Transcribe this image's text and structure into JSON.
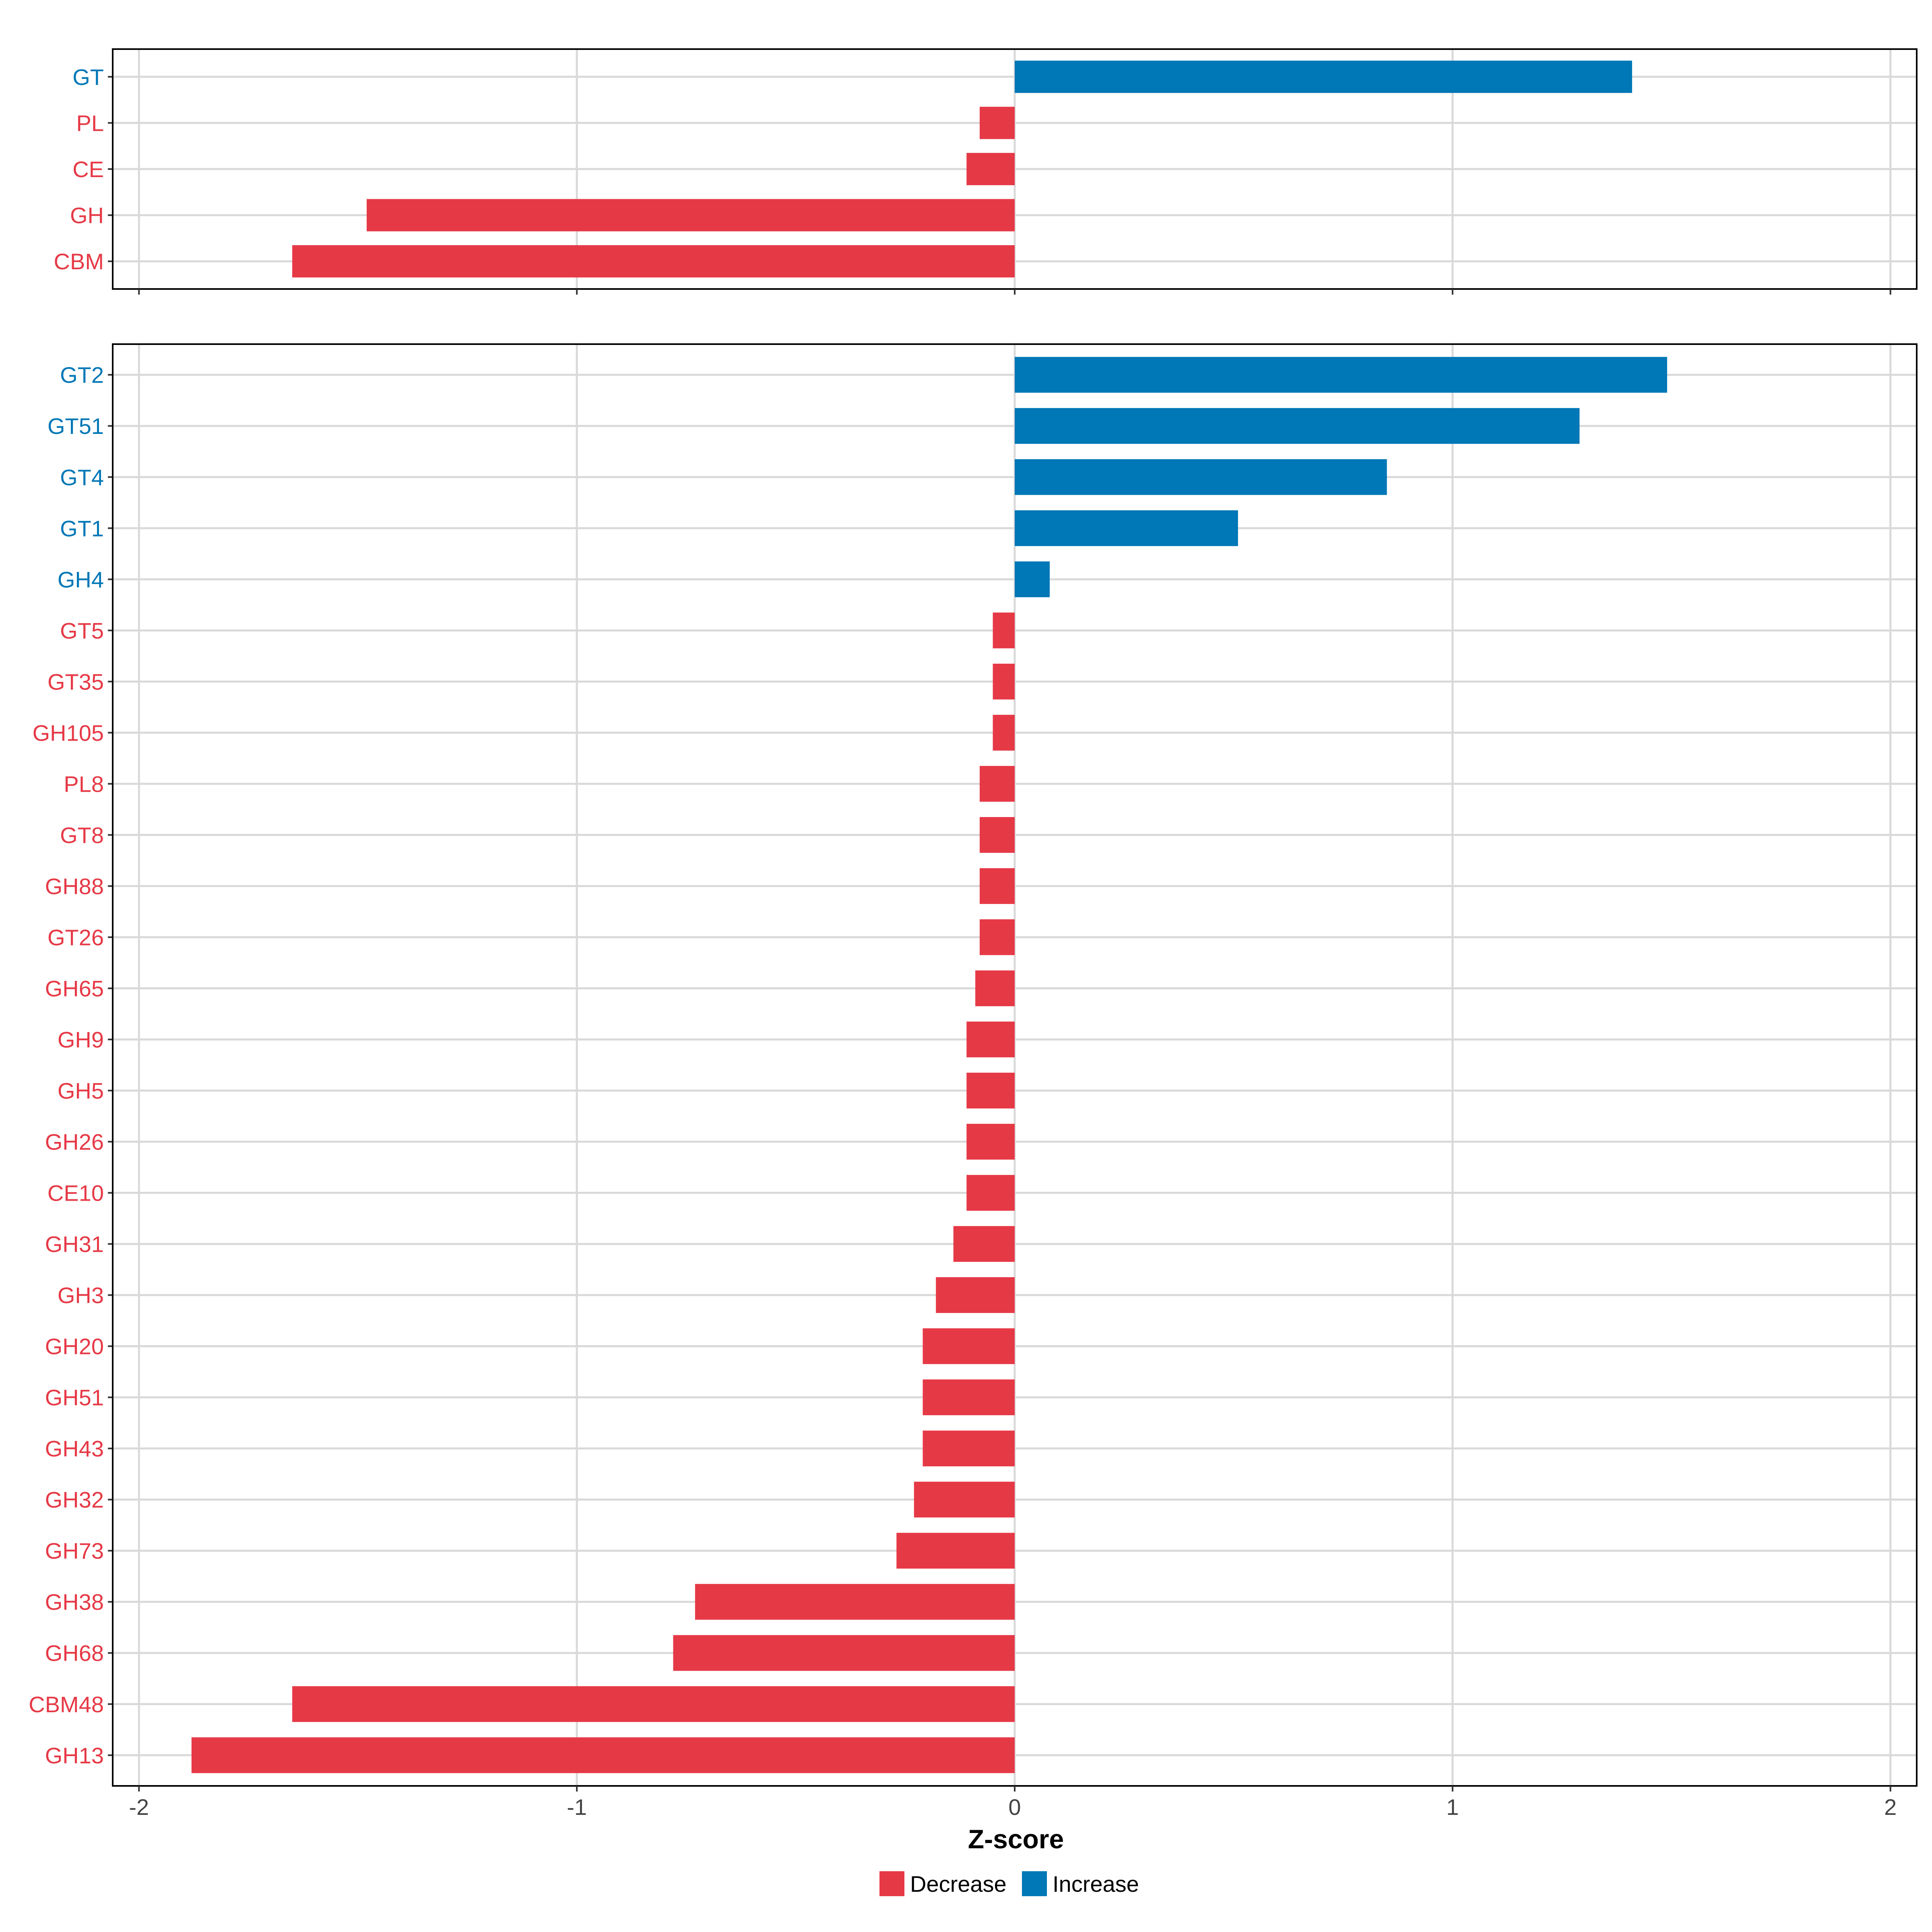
{
  "colors": {
    "decrease": "#E63946",
    "increase": "#0077B6",
    "grid": "#D9D9D9",
    "frame": "#000000",
    "text": "#222222"
  },
  "chart_data": [
    {
      "type": "bar",
      "orientation": "horizontal",
      "panel": "top",
      "categories": [
        "GT",
        "PL",
        "CE",
        "GH",
        "CBM"
      ],
      "values": [
        1.41,
        -0.08,
        -0.11,
        -1.48,
        -1.65
      ],
      "direction": [
        "Increase",
        "Decrease",
        "Decrease",
        "Decrease",
        "Decrease"
      ],
      "xlim": [
        -2.06,
        2.06
      ],
      "x_ticks": [
        -2,
        -1,
        0,
        1,
        2
      ],
      "grid": true
    },
    {
      "type": "bar",
      "orientation": "horizontal",
      "panel": "bottom",
      "categories": [
        "GT2",
        "GT51",
        "GT4",
        "GT1",
        "GH4",
        "GT5",
        "GT35",
        "GH105",
        "PL8",
        "GT8",
        "GH88",
        "GT26",
        "GH65",
        "GH9",
        "GH5",
        "GH26",
        "CE10",
        "GH31",
        "GH3",
        "GH20",
        "GH51",
        "GH43",
        "GH32",
        "GH73",
        "GH38",
        "GH68",
        "CBM48",
        "GH13"
      ],
      "values": [
        1.49,
        1.29,
        0.85,
        0.51,
        0.08,
        -0.05,
        -0.05,
        -0.05,
        -0.08,
        -0.08,
        -0.08,
        -0.08,
        -0.09,
        -0.11,
        -0.11,
        -0.11,
        -0.11,
        -0.14,
        -0.18,
        -0.21,
        -0.21,
        -0.21,
        -0.23,
        -0.27,
        -0.73,
        -0.78,
        -1.65,
        -1.88
      ],
      "direction": [
        "Increase",
        "Increase",
        "Increase",
        "Increase",
        "Increase",
        "Decrease",
        "Decrease",
        "Decrease",
        "Decrease",
        "Decrease",
        "Decrease",
        "Decrease",
        "Decrease",
        "Decrease",
        "Decrease",
        "Decrease",
        "Decrease",
        "Decrease",
        "Decrease",
        "Decrease",
        "Decrease",
        "Decrease",
        "Decrease",
        "Decrease",
        "Decrease",
        "Decrease",
        "Decrease",
        "Decrease"
      ],
      "xlim": [
        -2.06,
        2.06
      ],
      "x_ticks": [
        -2,
        -1,
        0,
        1,
        2
      ],
      "x_tick_labels": [
        "-2",
        "-1",
        "0",
        "1",
        "2"
      ],
      "xlabel": "Z-score",
      "grid": true
    }
  ],
  "legend": {
    "position": "bottom",
    "items": [
      {
        "label": "Decrease",
        "color_key": "decrease"
      },
      {
        "label": "Increase",
        "color_key": "increase"
      }
    ]
  }
}
